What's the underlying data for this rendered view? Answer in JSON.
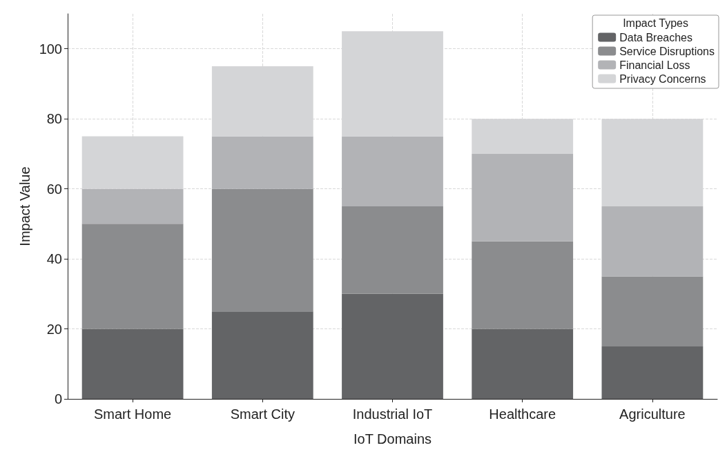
{
  "chart_data": {
    "type": "bar",
    "stacked": true,
    "xlabel": "IoT Domains",
    "ylabel": "Impact Value",
    "legend_title": "Impact Types",
    "legend": "top right",
    "grid": true,
    "categories": [
      "Smart Home",
      "Smart City",
      "Industrial IoT",
      "Healthcare",
      "Agriculture"
    ],
    "ylim": [
      0,
      110
    ],
    "yticks": [
      0,
      20,
      40,
      60,
      80,
      100
    ],
    "series": [
      {
        "name": "Data Breaches",
        "color": "#636466",
        "values": [
          20,
          25,
          30,
          20,
          15
        ]
      },
      {
        "name": "Service Disruptions",
        "color": "#8b8c8e",
        "values": [
          30,
          35,
          25,
          25,
          20
        ]
      },
      {
        "name": "Financial Loss",
        "color": "#b2b3b6",
        "values": [
          10,
          15,
          20,
          25,
          20
        ]
      },
      {
        "name": "Privacy Concerns",
        "color": "#d4d5d7",
        "values": [
          15,
          20,
          30,
          10,
          25
        ]
      }
    ]
  }
}
